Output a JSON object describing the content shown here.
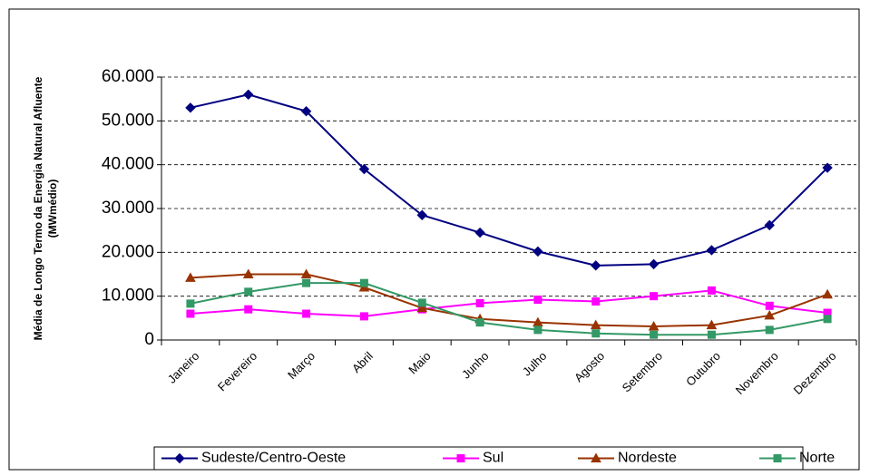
{
  "chart_data": {
    "type": "line",
    "ylabel": [
      "Média de Longo Termo da Energia Natural Afluente",
      "(MWmédio)"
    ],
    "categories": [
      "Janeiro",
      "Fevereiro",
      "Março",
      "Abril",
      "Maio",
      "Junho",
      "Julho",
      "Agosto",
      "Setembro",
      "Outubro",
      "Novembro",
      "Dezembro"
    ],
    "series": [
      {
        "name": "Sudeste/Centro-Oeste",
        "color": "#000080",
        "marker": "diamond",
        "values": [
          53000,
          56000,
          52200,
          39000,
          28500,
          24500,
          20200,
          17000,
          17300,
          20500,
          26200,
          39300
        ]
      },
      {
        "name": "Sul",
        "color": "#ff00ff",
        "marker": "square",
        "values": [
          6000,
          7000,
          6000,
          5400,
          7000,
          8400,
          9200,
          8800,
          10000,
          11300,
          7800,
          6200
        ]
      },
      {
        "name": "Nordeste",
        "color": "#993300",
        "marker": "triangle",
        "values": [
          14200,
          15000,
          15000,
          12000,
          7300,
          4800,
          4000,
          3400,
          3100,
          3400,
          5600,
          10400
        ]
      },
      {
        "name": "Norte",
        "color": "#339966",
        "marker": "square",
        "values": [
          8300,
          11000,
          13000,
          13000,
          8500,
          4000,
          2300,
          1500,
          1200,
          1200,
          2300,
          4800
        ]
      }
    ],
    "ylim": [
      0,
      60000
    ],
    "yticks": [
      0,
      {
        "value": 10000,
        "label": "10.000"
      },
      {
        "value": 20000,
        "label": "20.000"
      },
      {
        "value": 30000,
        "label": "30.000"
      },
      {
        "value": 40000,
        "label": "40.000"
      },
      {
        "value": 50000,
        "label": "50.000"
      },
      {
        "value": 60000,
        "label": "60.000"
      }
    ],
    "grid": true
  }
}
